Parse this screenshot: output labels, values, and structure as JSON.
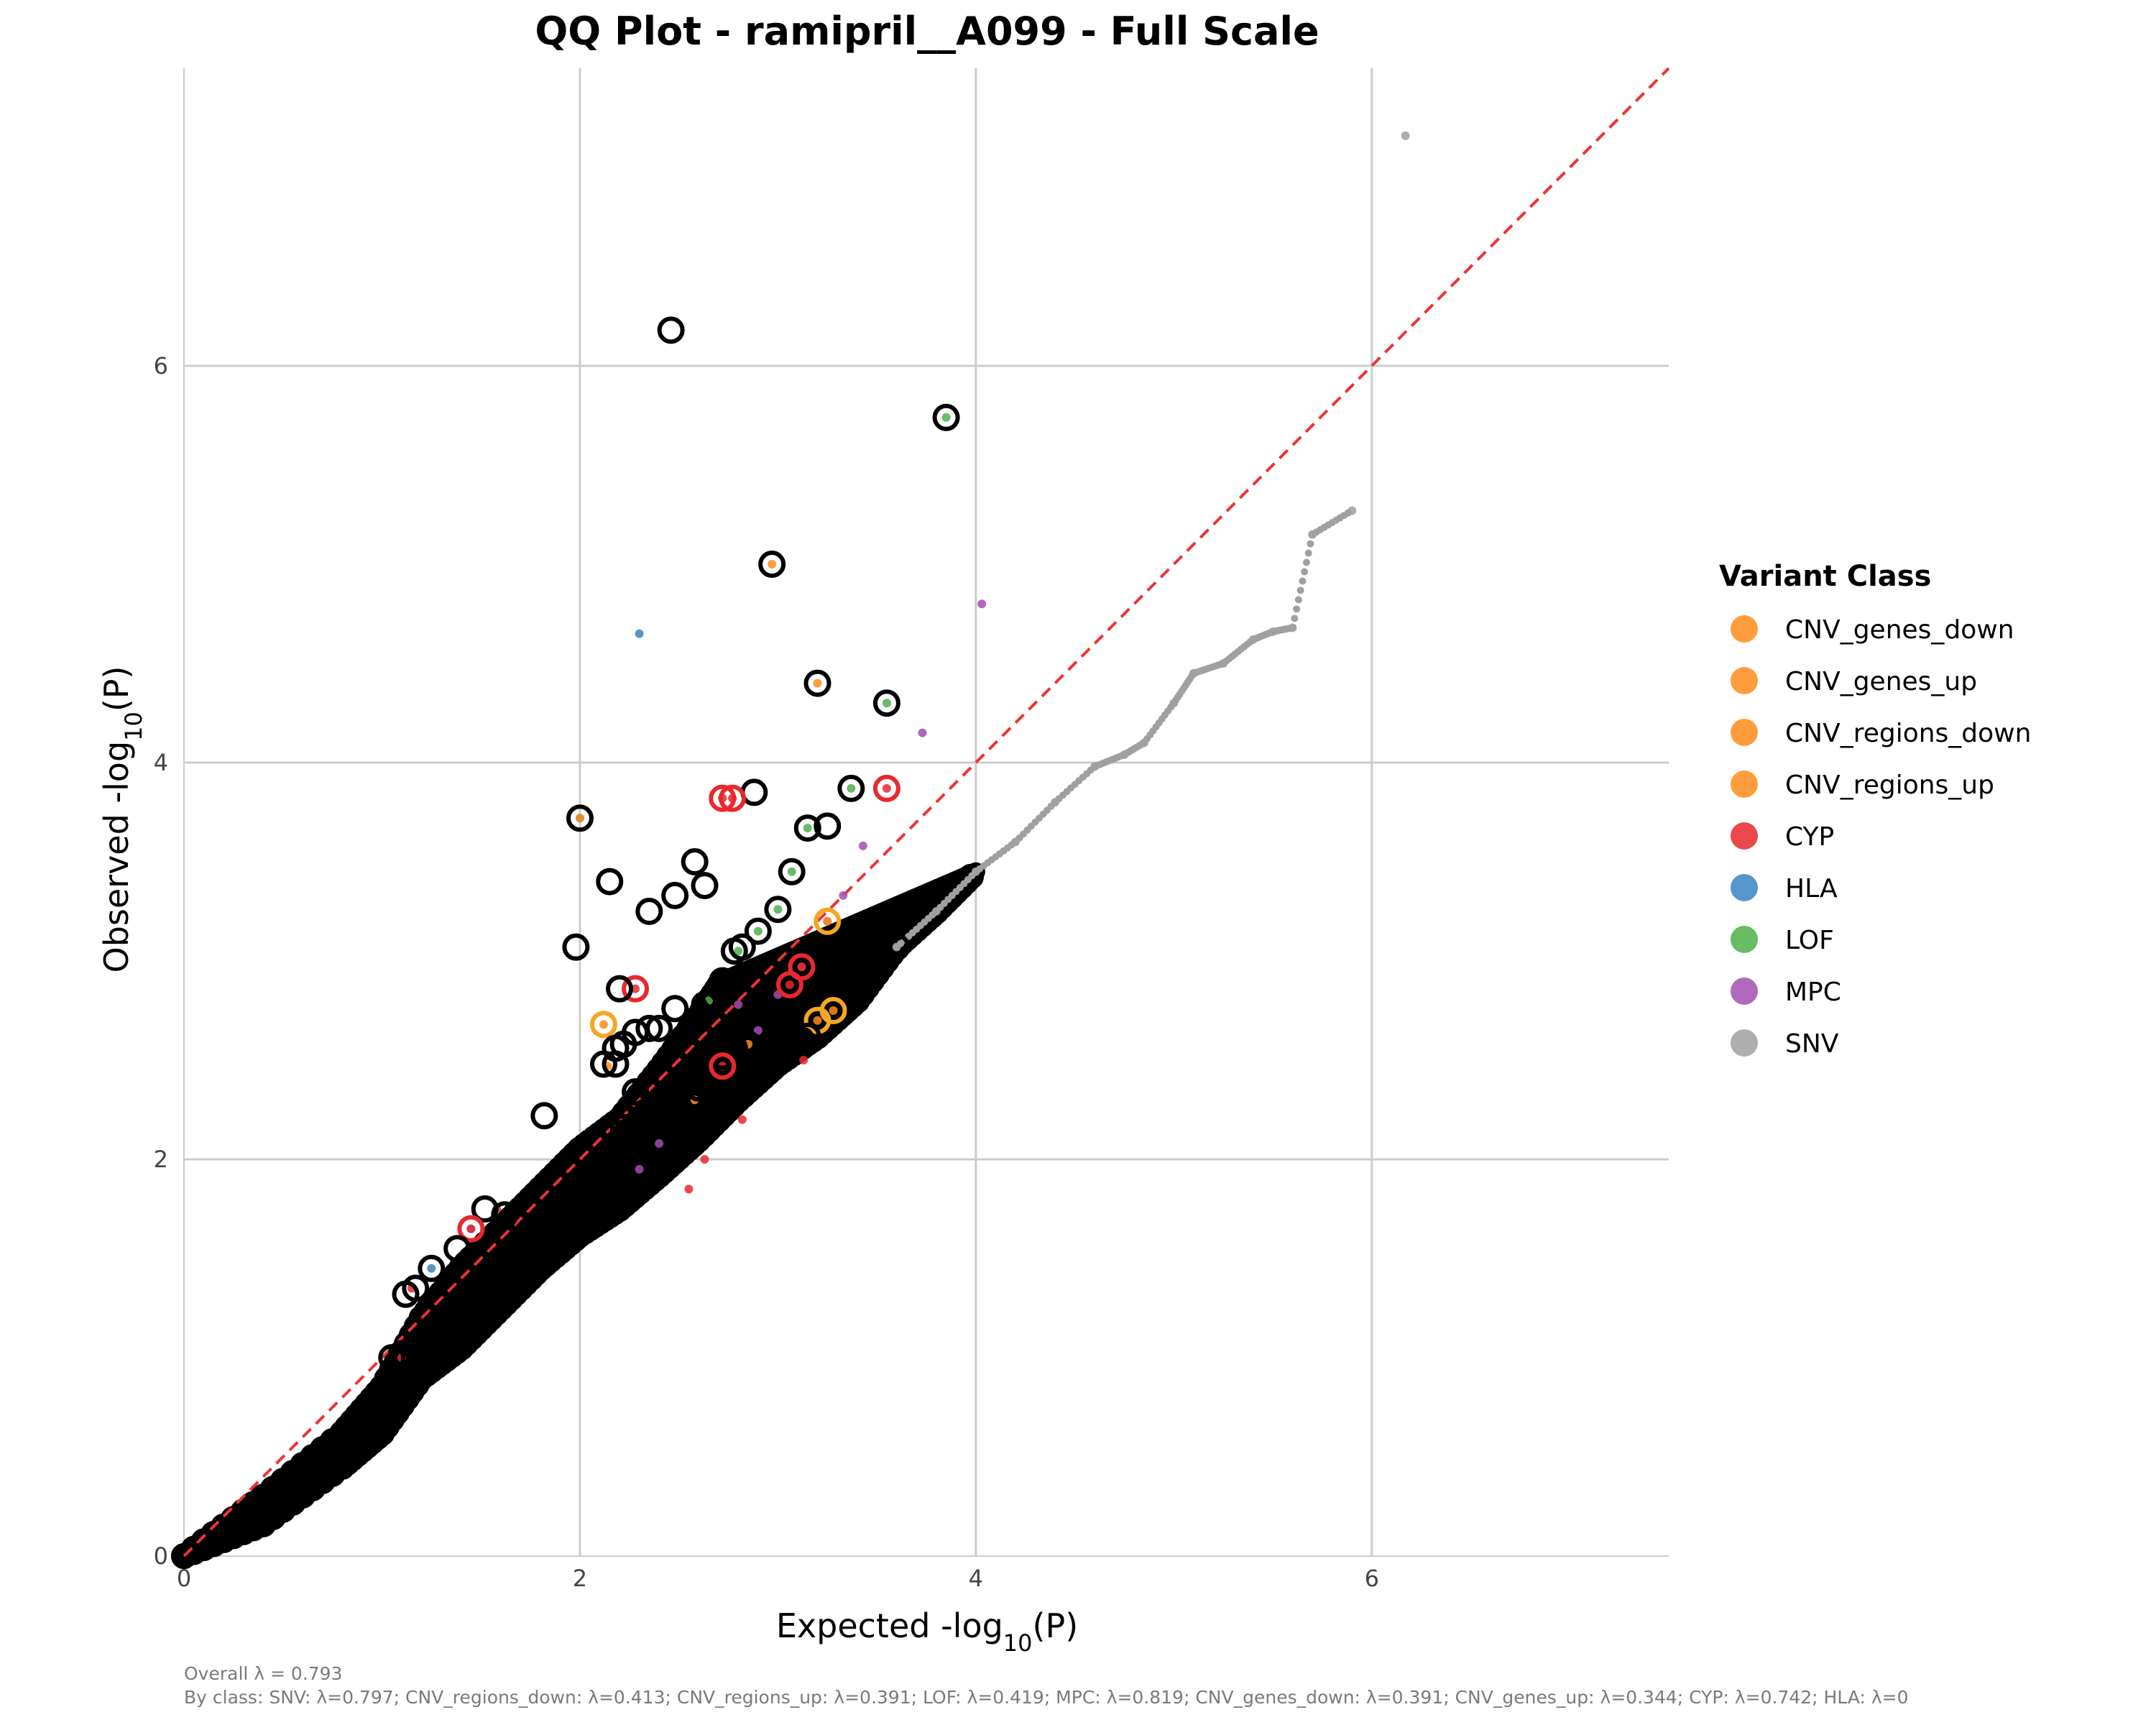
{
  "chart_data": {
    "type": "scatter",
    "title": "QQ Plot - ramipril__A099 - Full Scale",
    "xlabel_prefix": "Expected -log",
    "ylabel_prefix": "Observed -log",
    "label_subscript": "10",
    "label_suffix": "(P)",
    "xlim": [
      0,
      7.5
    ],
    "ylim": [
      0,
      7.5
    ],
    "x_ticks": [
      0,
      2,
      4,
      6
    ],
    "y_ticks": [
      0,
      2,
      4,
      6
    ],
    "x_tick_labels": [
      "0",
      "2",
      "4",
      "6"
    ],
    "y_tick_labels": [
      "0",
      "2",
      "4",
      "6"
    ],
    "grid": true,
    "reference_line": {
      "from": [
        0,
        0
      ],
      "to": [
        7.5,
        7.5
      ],
      "color": "#ee3333",
      "style": "dashed"
    },
    "legend": {
      "title": "Variant Class",
      "placement": "right",
      "entries": [
        {
          "label": "CNV_genes_down",
          "color": "#ff8c1a"
        },
        {
          "label": "CNV_genes_up",
          "color": "#ff8c1a"
        },
        {
          "label": "CNV_regions_down",
          "color": "#ff8c1a"
        },
        {
          "label": "CNV_regions_up",
          "color": "#ff8c1a"
        },
        {
          "label": "CYP",
          "color": "#e8282e"
        },
        {
          "label": "HLA",
          "color": "#3a84c2"
        },
        {
          "label": "LOF",
          "color": "#4cb04a"
        },
        {
          "label": "MPC",
          "color": "#a24fb2"
        },
        {
          "label": "SNV",
          "color": "#a0a0a0"
        }
      ]
    },
    "series": [
      {
        "name": "SNV",
        "color": "#a0a0a0",
        "points": [
          [
            3.6,
            3.07
          ],
          [
            3.8,
            3.25
          ],
          [
            4.0,
            3.45
          ],
          [
            4.2,
            3.6
          ],
          [
            4.4,
            3.8
          ],
          [
            4.6,
            3.98
          ],
          [
            4.75,
            4.04
          ],
          [
            4.85,
            4.1
          ],
          [
            5.0,
            4.3
          ],
          [
            5.1,
            4.45
          ],
          [
            5.25,
            4.5
          ],
          [
            5.4,
            4.62
          ],
          [
            5.5,
            4.66
          ],
          [
            5.6,
            4.68
          ],
          [
            5.7,
            5.15
          ],
          [
            5.9,
            5.27
          ],
          [
            6.17,
            7.16
          ]
        ]
      },
      {
        "name": "HLA",
        "color": "#3a84c2",
        "points": [
          [
            2.3,
            4.65
          ],
          [
            2.0,
            3.72
          ],
          [
            1.25,
            1.45
          ],
          [
            1.45,
            1.65
          ]
        ]
      },
      {
        "name": "LOF",
        "color": "#4cb04a",
        "points": [
          [
            3.85,
            5.74
          ],
          [
            3.55,
            4.3
          ],
          [
            3.37,
            3.87
          ],
          [
            3.15,
            3.67
          ],
          [
            3.07,
            3.45
          ],
          [
            3.0,
            3.26
          ],
          [
            2.9,
            3.15
          ],
          [
            2.8,
            3.05
          ],
          [
            2.65,
            2.8
          ]
        ]
      },
      {
        "name": "MPC",
        "color": "#a24fb2",
        "points": [
          [
            4.03,
            4.8
          ],
          [
            3.73,
            4.15
          ],
          [
            3.43,
            3.58
          ],
          [
            3.33,
            3.33
          ],
          [
            3.25,
            3.2
          ],
          [
            3.12,
            2.97
          ],
          [
            3.0,
            2.83
          ],
          [
            2.9,
            2.65
          ],
          [
            2.8,
            2.78
          ],
          [
            2.4,
            2.08
          ],
          [
            2.3,
            1.95
          ]
        ]
      },
      {
        "name": "CNV",
        "color": "#ff8c1a",
        "points": [
          [
            3.2,
            4.4
          ],
          [
            2.97,
            5.0
          ],
          [
            3.25,
            3.2
          ],
          [
            3.28,
            2.75
          ],
          [
            3.2,
            2.7
          ],
          [
            2.85,
            2.58
          ],
          [
            2.58,
            2.3
          ],
          [
            2.12,
            2.68
          ],
          [
            2.14,
            2.47
          ],
          [
            2.0,
            3.72
          ]
        ]
      },
      {
        "name": "CYP",
        "color": "#e8282e",
        "points": [
          [
            3.55,
            3.87
          ],
          [
            2.72,
            3.82
          ],
          [
            2.77,
            3.82
          ],
          [
            3.12,
            2.97
          ],
          [
            3.06,
            2.88
          ],
          [
            2.28,
            2.86
          ],
          [
            2.72,
            2.47
          ],
          [
            3.13,
            2.5
          ],
          [
            2.63,
            2.0
          ],
          [
            2.82,
            2.2
          ],
          [
            2.55,
            1.85
          ],
          [
            1.45,
            1.65
          ],
          [
            1.58,
            1.75
          ],
          [
            1.1,
            1.0
          ],
          [
            1.15,
            1.35
          ]
        ]
      }
    ],
    "top_hits": [
      [
        2.46,
        6.18
      ],
      [
        3.85,
        5.74
      ],
      [
        2.97,
        5.0
      ],
      [
        3.2,
        4.4
      ],
      [
        3.55,
        4.3
      ],
      [
        2.88,
        3.85
      ],
      [
        3.37,
        3.87
      ],
      [
        2.72,
        3.82
      ],
      [
        2.77,
        3.82
      ],
      [
        3.55,
        3.87
      ],
      [
        3.15,
        3.67
      ],
      [
        3.25,
        3.68
      ],
      [
        2.0,
        3.72
      ],
      [
        2.58,
        3.5
      ],
      [
        3.07,
        3.45
      ],
      [
        2.15,
        3.4
      ],
      [
        2.63,
        3.38
      ],
      [
        2.48,
        3.33
      ],
      [
        2.35,
        3.25
      ],
      [
        3.0,
        3.26
      ],
      [
        3.25,
        3.2
      ],
      [
        2.9,
        3.15
      ],
      [
        2.82,
        3.07
      ],
      [
        2.78,
        3.05
      ],
      [
        3.6,
        3.07
      ],
      [
        1.98,
        3.07
      ],
      [
        3.12,
        2.97
      ],
      [
        3.06,
        2.88
      ],
      [
        2.72,
        2.9
      ],
      [
        2.78,
        2.9
      ],
      [
        2.28,
        2.86
      ],
      [
        2.2,
        2.86
      ],
      [
        3.43,
        2.88
      ],
      [
        2.68,
        2.82
      ],
      [
        2.63,
        2.78
      ],
      [
        2.48,
        2.76
      ],
      [
        2.12,
        2.68
      ],
      [
        2.35,
        2.66
      ],
      [
        2.4,
        2.66
      ],
      [
        2.28,
        2.64
      ],
      [
        3.2,
        2.7
      ],
      [
        3.28,
        2.75
      ],
      [
        3.15,
        2.62
      ],
      [
        3.12,
        2.6
      ],
      [
        2.22,
        2.58
      ],
      [
        2.18,
        2.56
      ],
      [
        2.85,
        2.58
      ],
      [
        2.78,
        2.56
      ],
      [
        2.72,
        2.52
      ],
      [
        2.12,
        2.48
      ],
      [
        2.18,
        2.48
      ],
      [
        2.72,
        2.47
      ],
      [
        2.6,
        2.36
      ],
      [
        2.28,
        2.34
      ],
      [
        2.58,
        2.3
      ],
      [
        1.82,
        2.22
      ],
      [
        2.22,
        2.16
      ],
      [
        2.4,
        2.08
      ],
      [
        1.52,
        1.75
      ],
      [
        1.62,
        1.72
      ],
      [
        1.45,
        1.65
      ],
      [
        1.25,
        1.45
      ],
      [
        1.38,
        1.55
      ],
      [
        1.12,
        1.32
      ],
      [
        1.17,
        1.35
      ],
      [
        1.1,
        1.02
      ],
      [
        1.05,
        1.0
      ]
    ],
    "bulk_band": {
      "upper_curve": [
        [
          0,
          0.0
        ],
        [
          0.4,
          0.3
        ],
        [
          0.8,
          0.62
        ],
        [
          1.0,
          0.85
        ],
        [
          1.2,
          1.2
        ],
        [
          1.4,
          1.45
        ],
        [
          1.6,
          1.65
        ],
        [
          1.8,
          1.85
        ],
        [
          2.0,
          2.05
        ],
        [
          2.2,
          2.2
        ],
        [
          2.4,
          2.45
        ],
        [
          2.6,
          2.72
        ],
        [
          2.72,
          2.9
        ]
      ],
      "lower_curve": [
        [
          0,
          0.0
        ],
        [
          0.4,
          0.16
        ],
        [
          0.8,
          0.45
        ],
        [
          1.0,
          0.62
        ],
        [
          1.2,
          0.9
        ],
        [
          1.4,
          1.05
        ],
        [
          1.6,
          1.25
        ],
        [
          1.8,
          1.45
        ],
        [
          2.0,
          1.62
        ],
        [
          2.2,
          1.75
        ],
        [
          2.4,
          1.92
        ],
        [
          2.6,
          2.1
        ],
        [
          2.8,
          2.3
        ],
        [
          3.0,
          2.48
        ],
        [
          3.2,
          2.62
        ],
        [
          3.4,
          2.8
        ],
        [
          3.6,
          3.07
        ],
        [
          3.8,
          3.25
        ],
        [
          4.0,
          3.45
        ]
      ]
    }
  },
  "captions": {
    "overall": "Overall λ = 0.793",
    "by_class": "By class: SNV: λ=0.797; CNV_regions_down: λ=0.413; CNV_regions_up: λ=0.391; LOF: λ=0.419; MPC: λ=0.819; CNV_genes_down: λ=0.391; CNV_genes_up: λ=0.344; CYP: λ=0.742; HLA: λ=0"
  }
}
